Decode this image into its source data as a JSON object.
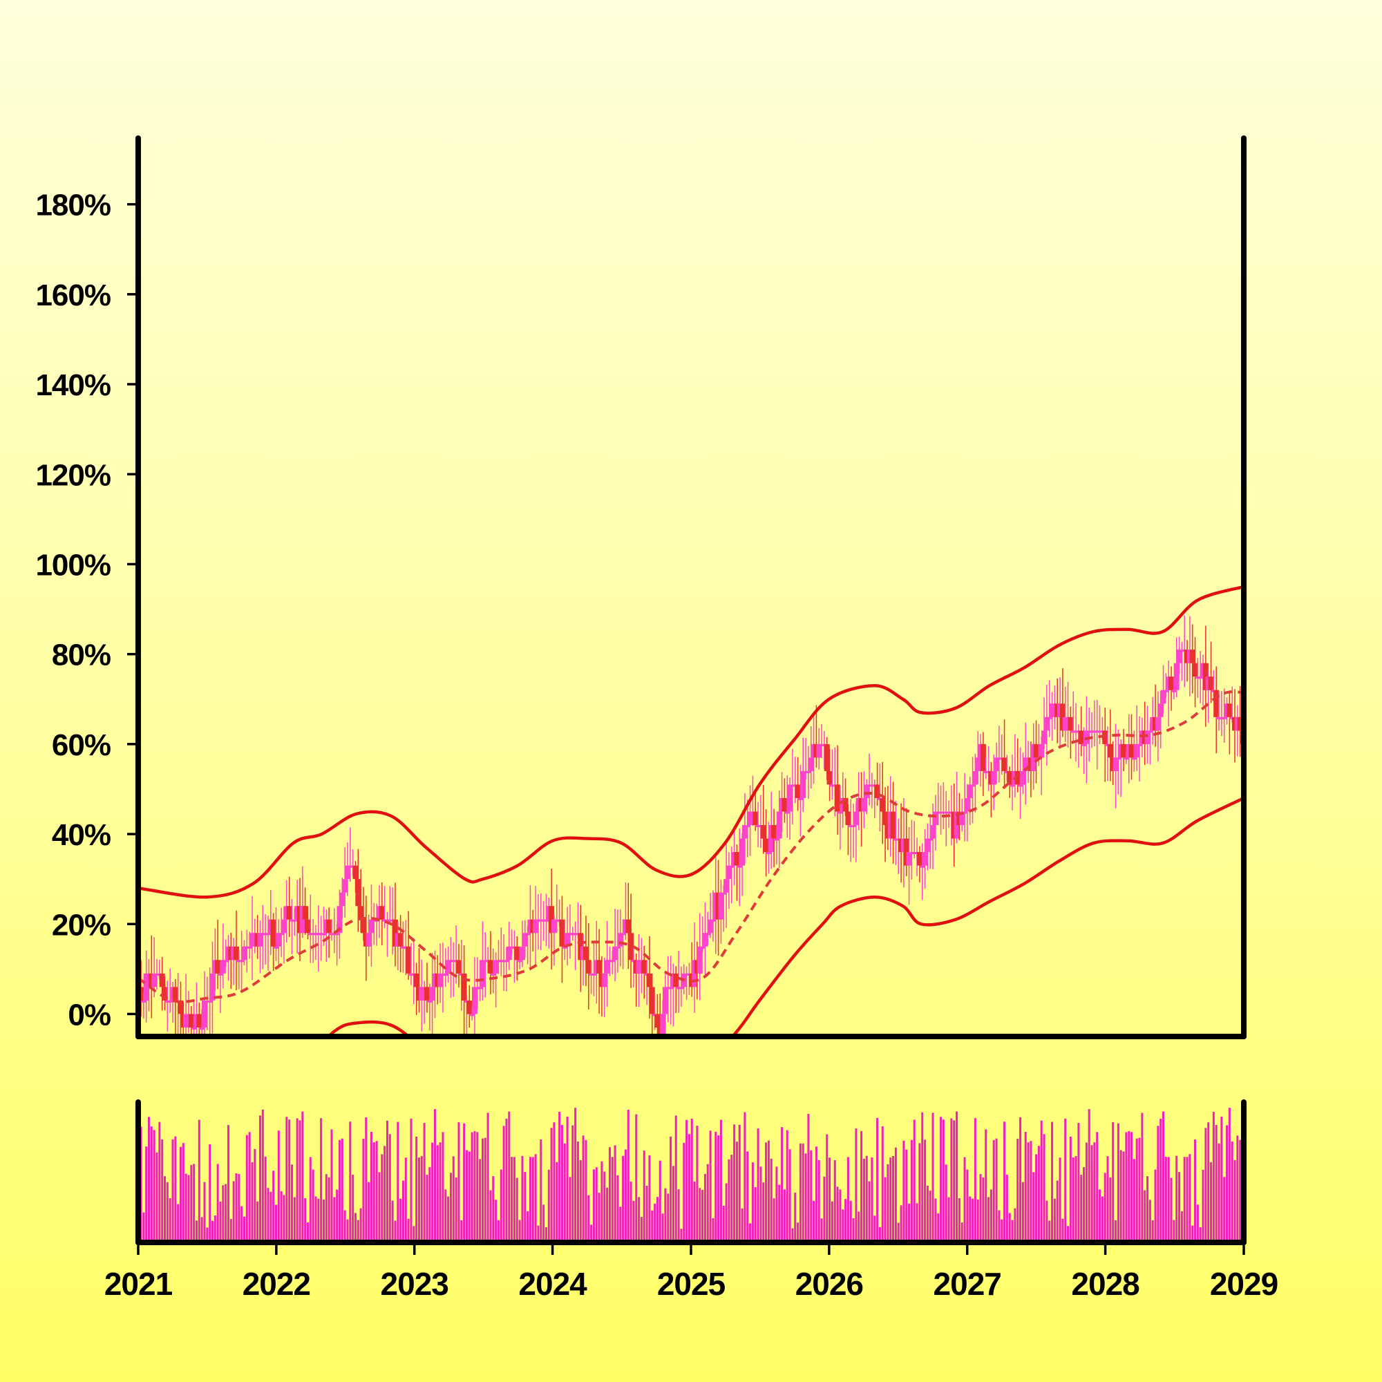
{
  "chart_data": {
    "type": "candlestick",
    "title": "",
    "xlabel": "",
    "ylabel": "",
    "x_ticks": [
      "2021",
      "2022",
      "2023",
      "2024",
      "2025",
      "2026",
      "2027",
      "2028",
      "2029"
    ],
    "y_ticks": [
      "0%",
      "20%",
      "40%",
      "60%",
      "80%",
      "100%",
      "120%",
      "140%",
      "160%",
      "180%"
    ],
    "xlim": [
      "2021-01-01",
      "2029-01-01"
    ],
    "ylim": [
      -5,
      195
    ],
    "grid": false,
    "legend": "none",
    "colors": {
      "candle_up": "#ff44cc",
      "candle_down": "#e8302e",
      "bands": "#e01010",
      "middle_band": "#e03a3a",
      "volume": "#ee22bb",
      "axis": "#000000"
    },
    "close_anchors": [
      {
        "date": "2021-01-01",
        "value": 6
      },
      {
        "date": "2021-02-15",
        "value": 9
      },
      {
        "date": "2021-04-01",
        "value": 2
      },
      {
        "date": "2021-05-15",
        "value": -2
      },
      {
        "date": "2021-06-15",
        "value": 0
      },
      {
        "date": "2021-07-15",
        "value": 10
      },
      {
        "date": "2021-09-01",
        "value": 14
      },
      {
        "date": "2021-11-01",
        "value": 16
      },
      {
        "date": "2022-03-01",
        "value": 22
      },
      {
        "date": "2022-04-01",
        "value": 16
      },
      {
        "date": "2022-05-15",
        "value": 18
      },
      {
        "date": "2022-07-15",
        "value": 32
      },
      {
        "date": "2022-08-15",
        "value": 18
      },
      {
        "date": "2022-10-01",
        "value": 24
      },
      {
        "date": "2022-11-15",
        "value": 14
      },
      {
        "date": "2023-01-01",
        "value": 4
      },
      {
        "date": "2023-03-01",
        "value": 8
      },
      {
        "date": "2023-04-15",
        "value": 12
      },
      {
        "date": "2023-05-15",
        "value": 0
      },
      {
        "date": "2023-07-01",
        "value": 12
      },
      {
        "date": "2023-10-01",
        "value": 14
      },
      {
        "date": "2023-12-01",
        "value": 22
      },
      {
        "date": "2024-02-15",
        "value": 16
      },
      {
        "date": "2024-05-01",
        "value": 8
      },
      {
        "date": "2024-07-01",
        "value": 18
      },
      {
        "date": "2024-08-15",
        "value": 10
      },
      {
        "date": "2024-10-01",
        "value": -4
      },
      {
        "date": "2024-11-01",
        "value": 8
      },
      {
        "date": "2025-01-01",
        "value": 10
      },
      {
        "date": "2025-03-01",
        "value": 24
      },
      {
        "date": "2025-05-01",
        "value": 36
      },
      {
        "date": "2025-06-01",
        "value": 44
      },
      {
        "date": "2025-07-15",
        "value": 38
      },
      {
        "date": "2025-09-15",
        "value": 48
      },
      {
        "date": "2025-12-01",
        "value": 60
      },
      {
        "date": "2026-01-15",
        "value": 48
      },
      {
        "date": "2026-03-01",
        "value": 44
      },
      {
        "date": "2026-04-15",
        "value": 50
      },
      {
        "date": "2026-06-01",
        "value": 42
      },
      {
        "date": "2026-07-15",
        "value": 36
      },
      {
        "date": "2026-09-01",
        "value": 34
      },
      {
        "date": "2026-10-15",
        "value": 46
      },
      {
        "date": "2026-12-01",
        "value": 42
      },
      {
        "date": "2027-02-01",
        "value": 56
      },
      {
        "date": "2027-03-15",
        "value": 54
      },
      {
        "date": "2027-05-01",
        "value": 52
      },
      {
        "date": "2027-06-15",
        "value": 58
      },
      {
        "date": "2027-08-15",
        "value": 66
      },
      {
        "date": "2027-10-01",
        "value": 62
      },
      {
        "date": "2027-12-01",
        "value": 64
      },
      {
        "date": "2028-01-15",
        "value": 56
      },
      {
        "date": "2028-03-01",
        "value": 58
      },
      {
        "date": "2028-05-01",
        "value": 66
      },
      {
        "date": "2028-06-15",
        "value": 74
      },
      {
        "date": "2028-07-15",
        "value": 80
      },
      {
        "date": "2028-09-01",
        "value": 76
      },
      {
        "date": "2028-11-01",
        "value": 66
      },
      {
        "date": "2029-01-01",
        "value": 62
      }
    ],
    "upper_band": [
      {
        "date": "2021-01-01",
        "value": 28
      },
      {
        "date": "2021-07-01",
        "value": 26
      },
      {
        "date": "2021-11-01",
        "value": 29
      },
      {
        "date": "2022-02-15",
        "value": 38
      },
      {
        "date": "2022-05-01",
        "value": 40
      },
      {
        "date": "2022-08-01",
        "value": 44.5
      },
      {
        "date": "2022-11-01",
        "value": 44
      },
      {
        "date": "2023-02-01",
        "value": 37
      },
      {
        "date": "2023-05-15",
        "value": 30
      },
      {
        "date": "2023-07-01",
        "value": 30
      },
      {
        "date": "2023-10-01",
        "value": 33
      },
      {
        "date": "2024-01-01",
        "value": 38.5
      },
      {
        "date": "2024-04-01",
        "value": 39
      },
      {
        "date": "2024-07-01",
        "value": 38
      },
      {
        "date": "2024-10-01",
        "value": 32
      },
      {
        "date": "2025-01-01",
        "value": 31
      },
      {
        "date": "2025-04-01",
        "value": 38
      },
      {
        "date": "2025-07-01",
        "value": 51
      },
      {
        "date": "2025-10-01",
        "value": 61
      },
      {
        "date": "2026-01-01",
        "value": 70
      },
      {
        "date": "2026-05-01",
        "value": 73
      },
      {
        "date": "2026-07-15",
        "value": 70
      },
      {
        "date": "2026-09-01",
        "value": 67
      },
      {
        "date": "2026-12-01",
        "value": 68
      },
      {
        "date": "2027-03-01",
        "value": 73
      },
      {
        "date": "2027-06-01",
        "value": 77
      },
      {
        "date": "2027-09-01",
        "value": 82
      },
      {
        "date": "2027-12-01",
        "value": 85
      },
      {
        "date": "2028-03-01",
        "value": 85.5
      },
      {
        "date": "2028-06-01",
        "value": 85
      },
      {
        "date": "2028-09-01",
        "value": 92
      },
      {
        "date": "2029-01-01",
        "value": 95
      }
    ],
    "middle_band": [
      {
        "date": "2021-01-01",
        "value": 8
      },
      {
        "date": "2021-04-01",
        "value": 3
      },
      {
        "date": "2021-07-01",
        "value": 3.5
      },
      {
        "date": "2021-10-01",
        "value": 5
      },
      {
        "date": "2022-02-01",
        "value": 12
      },
      {
        "date": "2022-05-01",
        "value": 16
      },
      {
        "date": "2022-08-01",
        "value": 21
      },
      {
        "date": "2022-11-01",
        "value": 20
      },
      {
        "date": "2023-02-01",
        "value": 14
      },
      {
        "date": "2023-05-01",
        "value": 8
      },
      {
        "date": "2023-08-01",
        "value": 8
      },
      {
        "date": "2023-11-01",
        "value": 10
      },
      {
        "date": "2024-02-01",
        "value": 15
      },
      {
        "date": "2024-05-01",
        "value": 16
      },
      {
        "date": "2024-08-01",
        "value": 15
      },
      {
        "date": "2024-11-01",
        "value": 9
      },
      {
        "date": "2025-02-01",
        "value": 8
      },
      {
        "date": "2025-05-01",
        "value": 18
      },
      {
        "date": "2025-08-01",
        "value": 30
      },
      {
        "date": "2025-11-01",
        "value": 40
      },
      {
        "date": "2026-02-01",
        "value": 47
      },
      {
        "date": "2026-05-01",
        "value": 49
      },
      {
        "date": "2026-08-01",
        "value": 45
      },
      {
        "date": "2026-11-01",
        "value": 44
      },
      {
        "date": "2027-02-01",
        "value": 46
      },
      {
        "date": "2027-05-01",
        "value": 52
      },
      {
        "date": "2027-08-01",
        "value": 58
      },
      {
        "date": "2027-11-01",
        "value": 61
      },
      {
        "date": "2028-02-01",
        "value": 62
      },
      {
        "date": "2028-05-01",
        "value": 62
      },
      {
        "date": "2028-08-01",
        "value": 65
      },
      {
        "date": "2028-11-01",
        "value": 71
      },
      {
        "date": "2029-01-01",
        "value": 71.5
      }
    ],
    "lower_band": [
      {
        "date": "2021-01-01",
        "value": -14
      },
      {
        "date": "2021-05-01",
        "value": -20
      },
      {
        "date": "2021-10-01",
        "value": -18
      },
      {
        "date": "2022-03-01",
        "value": -12
      },
      {
        "date": "2022-06-01",
        "value": -4
      },
      {
        "date": "2022-08-01",
        "value": -2
      },
      {
        "date": "2022-11-01",
        "value": -2.5
      },
      {
        "date": "2023-02-01",
        "value": -8
      },
      {
        "date": "2023-06-01",
        "value": -14
      },
      {
        "date": "2023-10-01",
        "value": -14
      },
      {
        "date": "2024-02-01",
        "value": -10
      },
      {
        "date": "2024-07-01",
        "value": -10
      },
      {
        "date": "2024-11-01",
        "value": -14
      },
      {
        "date": "2025-02-01",
        "value": -12
      },
      {
        "date": "2025-05-01",
        "value": -4
      },
      {
        "date": "2025-07-01",
        "value": 3
      },
      {
        "date": "2025-10-01",
        "value": 13
      },
      {
        "date": "2025-12-15",
        "value": 20
      },
      {
        "date": "2026-02-01",
        "value": 24
      },
      {
        "date": "2026-05-01",
        "value": 26
      },
      {
        "date": "2026-07-15",
        "value": 24
      },
      {
        "date": "2026-09-01",
        "value": 20
      },
      {
        "date": "2026-12-01",
        "value": 21
      },
      {
        "date": "2027-03-01",
        "value": 25
      },
      {
        "date": "2027-06-01",
        "value": 29
      },
      {
        "date": "2027-09-01",
        "value": 34
      },
      {
        "date": "2027-12-01",
        "value": 38
      },
      {
        "date": "2028-03-01",
        "value": 38.5
      },
      {
        "date": "2028-06-01",
        "value": 38
      },
      {
        "date": "2028-09-01",
        "value": 43
      },
      {
        "date": "2029-01-01",
        "value": 48
      }
    ],
    "volume_range": [
      0.1,
      1.0
    ],
    "bar_interval_days": 7
  }
}
